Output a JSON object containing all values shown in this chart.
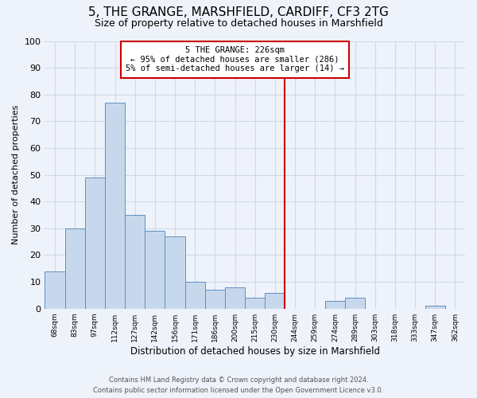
{
  "title": "5, THE GRANGE, MARSHFIELD, CARDIFF, CF3 2TG",
  "subtitle": "Size of property relative to detached houses in Marshfield",
  "xlabel": "Distribution of detached houses by size in Marshfield",
  "ylabel": "Number of detached properties",
  "bar_labels": [
    "68sqm",
    "83sqm",
    "97sqm",
    "112sqm",
    "127sqm",
    "142sqm",
    "156sqm",
    "171sqm",
    "186sqm",
    "200sqm",
    "215sqm",
    "230sqm",
    "244sqm",
    "259sqm",
    "274sqm",
    "289sqm",
    "303sqm",
    "318sqm",
    "333sqm",
    "347sqm",
    "362sqm"
  ],
  "bar_values": [
    14,
    30,
    49,
    77,
    35,
    29,
    27,
    10,
    7,
    8,
    4,
    6,
    0,
    0,
    3,
    4,
    0,
    0,
    0,
    1,
    0
  ],
  "bar_color": "#c8d8ec",
  "bar_edge_color": "#6090c0",
  "vline_color": "#cc0000",
  "annotation_title": "5 THE GRANGE: 226sqm",
  "annotation_line1": "← 95% of detached houses are smaller (286)",
  "annotation_line2": "5% of semi-detached houses are larger (14) →",
  "annotation_box_color": "white",
  "annotation_box_edge_color": "#cc0000",
  "footer1": "Contains HM Land Registry data © Crown copyright and database right 2024.",
  "footer2": "Contains public sector information licensed under the Open Government Licence v3.0.",
  "background_color": "#eef2fa",
  "grid_color": "#d0d8e8",
  "ylim": [
    0,
    100
  ],
  "title_fontsize": 11,
  "subtitle_fontsize": 9,
  "vline_pos": 11.5
}
